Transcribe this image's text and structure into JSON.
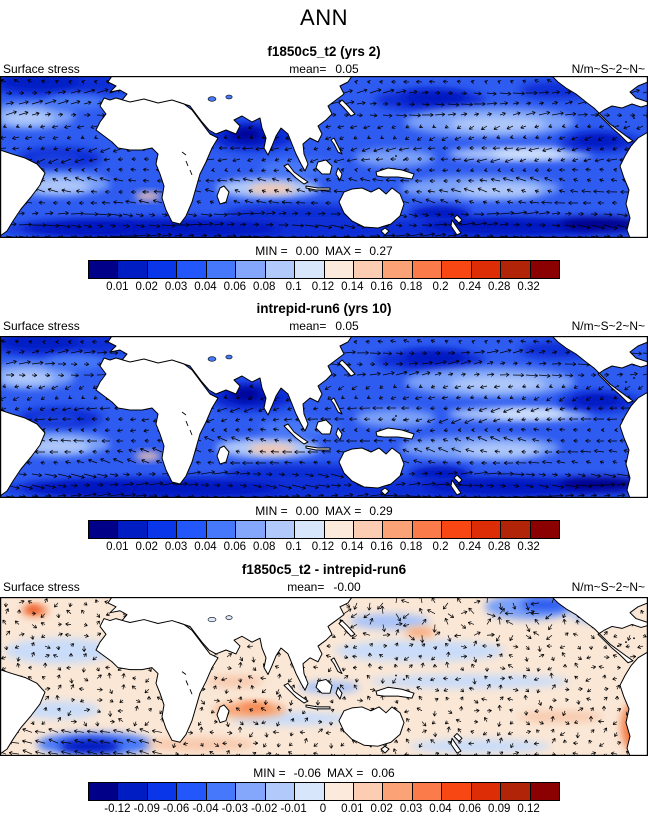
{
  "header": {
    "title": "ANN"
  },
  "chart_data": [
    {
      "type": "heatmap",
      "title": "f1850c5_t2 (yrs 2)",
      "variable": "Surface stress",
      "mean_label": "mean=",
      "mean": "0.05",
      "units": "N/m~S~2~N~",
      "min_label": "MIN =",
      "min": "0.00",
      "max_label": "MAX =",
      "max": "0.27",
      "levels": [
        "0.01",
        "0.02",
        "0.03",
        "0.04",
        "0.06",
        "0.08",
        "0.1",
        "0.12",
        "0.14",
        "0.16",
        "0.18",
        "0.2",
        "0.24",
        "0.28",
        "0.32"
      ],
      "palette": [
        "#000089",
        "#001CC3",
        "#0836E8",
        "#2357FB",
        "#4678FB",
        "#84A7FB",
        "#B1C9FB",
        "#D8E6FC",
        "#FCEBDC",
        "#FCCDB3",
        "#FBA377",
        "#FB7B4A",
        "#F94713",
        "#DC2D06",
        "#B22408",
        "#8B0000"
      ]
    },
    {
      "type": "heatmap",
      "title": "intrepid-run6 (yrs 10)",
      "variable": "Surface stress",
      "mean_label": "mean=",
      "mean": "0.05",
      "units": "N/m~S~2~N~",
      "min_label": "MIN =",
      "min": "0.00",
      "max_label": "MAX =",
      "max": "0.29",
      "levels": [
        "0.01",
        "0.02",
        "0.03",
        "0.04",
        "0.06",
        "0.08",
        "0.1",
        "0.12",
        "0.14",
        "0.16",
        "0.18",
        "0.2",
        "0.24",
        "0.28",
        "0.32"
      ],
      "palette": [
        "#000089",
        "#001CC3",
        "#0836E8",
        "#2357FB",
        "#4678FB",
        "#84A7FB",
        "#B1C9FB",
        "#D8E6FC",
        "#FCEBDC",
        "#FCCDB3",
        "#FBA377",
        "#FB7B4A",
        "#F94713",
        "#DC2D06",
        "#B22408",
        "#8B0000"
      ]
    },
    {
      "type": "heatmap",
      "title": "f1850c5_t2 - intrepid-run6",
      "variable": "Surface stress",
      "mean_label": "mean=",
      "mean": "-0.00",
      "units": "N/m~S~2~N~",
      "min_label": "MIN =",
      "min": "-0.06",
      "max_label": "MAX =",
      "max": "0.06",
      "levels": [
        "-0.12",
        "-0.09",
        "-0.06",
        "-0.04",
        "-0.03",
        "-0.02",
        "-0.01",
        "0",
        "0.01",
        "0.02",
        "0.03",
        "0.04",
        "0.06",
        "0.09",
        "0.12"
      ],
      "palette": [
        "#000089",
        "#001CC3",
        "#0836E8",
        "#2357FB",
        "#4678FB",
        "#84A7FB",
        "#B1C9FB",
        "#D8E6FC",
        "#FCEBDC",
        "#FCCDB3",
        "#FBA377",
        "#FB7B4A",
        "#F94713",
        "#DC2D06",
        "#B22408",
        "#8B0000"
      ]
    }
  ]
}
